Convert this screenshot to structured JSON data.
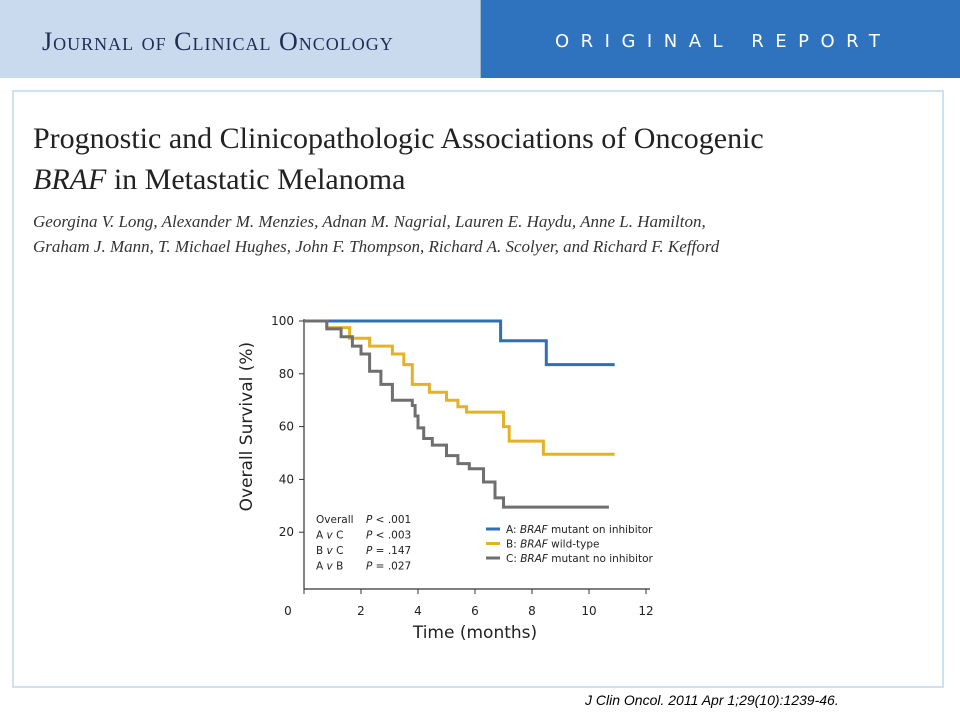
{
  "header": {
    "journal_name": "Journal of Clinical Oncology",
    "report_label": "ORIGINAL REPORT"
  },
  "article": {
    "title_part1": "Prognostic and Clinicopathologic Associations of Oncogenic",
    "title_gene": "BRAF",
    "title_part2": " in Metastatic Melanoma",
    "authors_line1": "Georgina V. Long, Alexander M. Menzies, Adnan M. Nagrial, Lauren E. Haydu, Anne L. Hamilton,",
    "authors_line2": "Graham J. Mann, T. Michael Hughes, John F. Thompson, Richard A. Scolyer, and Richard F. Kefford"
  },
  "citation": "J Clin Oncol. 2011 Apr 1;29(10):1239-46.",
  "colors": {
    "banner_left": "#c9d9ee",
    "banner_right": "#2f73bf",
    "series_a": "#2f6fb7",
    "series_b": "#e3b323",
    "series_c": "#6f6f6f"
  },
  "chart_data": {
    "type": "line",
    "step": true,
    "xlabel": "Time (months)",
    "ylabel": "Overall Survival (%)",
    "xlim": [
      0,
      12
    ],
    "ylim": [
      0,
      100
    ],
    "xticks": [
      0,
      2,
      4,
      6,
      8,
      10,
      12
    ],
    "yticks": [
      20,
      40,
      60,
      80,
      100
    ],
    "grid": false,
    "series": [
      {
        "name_prefix": "A: ",
        "name_gene": "BRAF",
        "name_suffix": " mutant on inhibitor",
        "x": [
          0,
          6.9,
          6.9,
          8.5,
          8.5,
          10.9
        ],
        "y": [
          100,
          100,
          92.5,
          92.5,
          83.5,
          83.5
        ]
      },
      {
        "name_prefix": "B: ",
        "name_gene": "BRAF",
        "name_suffix": " wild-type",
        "x": [
          0,
          0.8,
          0.8,
          1.6,
          1.6,
          2.3,
          2.3,
          3.1,
          3.1,
          3.5,
          3.5,
          3.8,
          3.8,
          4.4,
          4.4,
          5.0,
          5.0,
          5.4,
          5.4,
          5.7,
          5.7,
          5.9,
          5.9,
          7.0,
          7.0,
          7.2,
          7.2,
          8.4,
          8.4,
          10.9
        ],
        "y": [
          100,
          100,
          97.5,
          97.5,
          93.5,
          93.5,
          90.5,
          90.5,
          87.5,
          87.5,
          83.5,
          83.5,
          76,
          76,
          73,
          73,
          70,
          70,
          67.5,
          67.5,
          65.5,
          65.5,
          65.5,
          65.5,
          60,
          60,
          54.5,
          54.5,
          49.5,
          49.5
        ]
      },
      {
        "name_prefix": "C: ",
        "name_gene": "BRAF",
        "name_suffix": " mutant no inhibitor",
        "x": [
          0,
          0.8,
          0.8,
          1.3,
          1.3,
          1.7,
          1.7,
          2.0,
          2.0,
          2.3,
          2.3,
          2.7,
          2.7,
          3.1,
          3.1,
          3.8,
          3.8,
          3.9,
          3.9,
          4.0,
          4.0,
          4.2,
          4.2,
          4.5,
          4.5,
          5.0,
          5.0,
          5.4,
          5.4,
          5.8,
          5.8,
          6.3,
          6.3,
          6.7,
          6.7,
          7.0,
          7.0,
          7.2,
          7.2,
          10.7
        ],
        "y": [
          100,
          100,
          97,
          97,
          94,
          94,
          90.5,
          90.5,
          87.5,
          87.5,
          81,
          81,
          76,
          76,
          70,
          70,
          68,
          68,
          64,
          64,
          59.5,
          59.5,
          55.5,
          55.5,
          53,
          53,
          49,
          49,
          46,
          46,
          44,
          44,
          39,
          39,
          33,
          33,
          29.5,
          29.5,
          29.5,
          29.5
        ]
      }
    ],
    "stats": [
      {
        "label": "Overall",
        "p_prefix": "P",
        "p_value": " < .001"
      },
      {
        "label": "A v C",
        "p_prefix": "P",
        "p_value": " < .003"
      },
      {
        "label": "B v C",
        "p_prefix": "P",
        "p_value": " = .147"
      },
      {
        "label": "A v B",
        "p_prefix": "P",
        "p_value": " = .027"
      }
    ]
  }
}
